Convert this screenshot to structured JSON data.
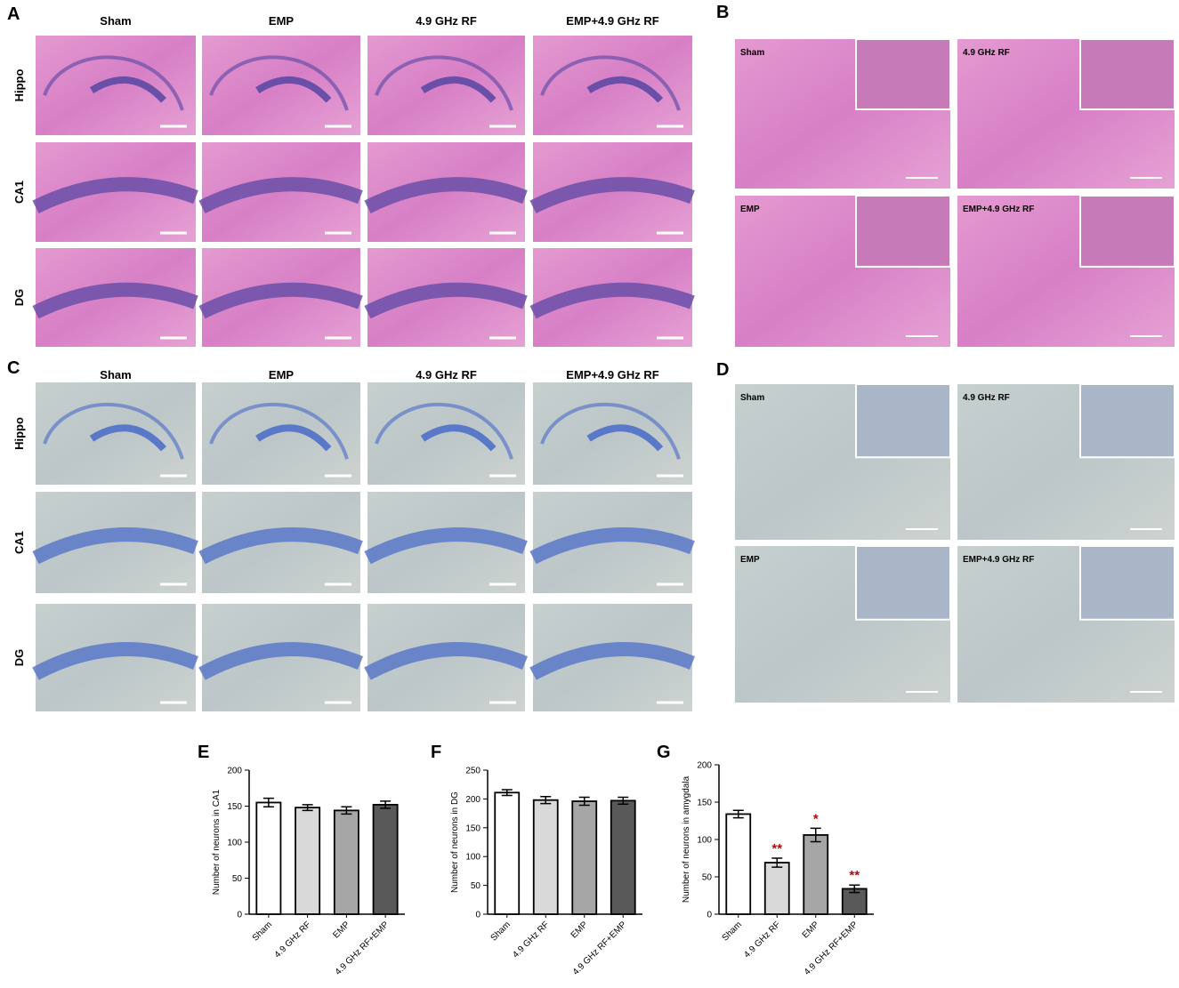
{
  "panels": {
    "A": {
      "label": "A",
      "columns": [
        "Sham",
        "EMP",
        "4.9 GHz RF",
        "EMP+4.9 GHz RF"
      ],
      "rows": [
        "Hippo",
        "CA1",
        "DG"
      ]
    },
    "B": {
      "label": "B",
      "tiles": [
        "Sham",
        "4.9 GHz RF",
        "EMP",
        "EMP+4.9 GHz RF"
      ]
    },
    "C": {
      "label": "C",
      "columns": [
        "Sham",
        "EMP",
        "4.9 GHz RF",
        "EMP+4.9 GHz RF"
      ],
      "rows": [
        "Hippo",
        "CA1",
        "DG"
      ]
    },
    "D": {
      "label": "D",
      "tiles": [
        "Sham",
        "4.9 GHz RF",
        "EMP",
        "EMP+4.9 GHz RF"
      ]
    }
  },
  "chart_data": [
    {
      "type": "bar",
      "panel_label": "E",
      "ylabel": "Number of neurons in CA1",
      "categories": [
        "Sham",
        "4.9 GHz RF",
        "EMP",
        "4.9 GHz RF+EMP"
      ],
      "values": [
        155,
        148,
        144,
        152
      ],
      "errors": [
        6,
        4,
        5,
        5
      ],
      "colors": [
        "#ffffff",
        "#d9d9d9",
        "#a6a6a6",
        "#595959"
      ],
      "ylim": [
        0,
        200
      ],
      "yticks": [
        0,
        50,
        100,
        150,
        200
      ]
    },
    {
      "type": "bar",
      "panel_label": "F",
      "ylabel": "Number of neurons in DG",
      "categories": [
        "Sham",
        "4.9 GHz RF",
        "EMP",
        "4.9 GHz RF+EMP"
      ],
      "values": [
        211,
        198,
        196,
        197
      ],
      "errors": [
        5,
        6,
        7,
        6
      ],
      "colors": [
        "#ffffff",
        "#d9d9d9",
        "#a6a6a6",
        "#595959"
      ],
      "ylim": [
        0,
        250
      ],
      "yticks": [
        0,
        50,
        100,
        150,
        200,
        250
      ]
    },
    {
      "type": "bar",
      "panel_label": "G",
      "ylabel": "Number of neurons in amygdala",
      "categories": [
        "Sham",
        "4.9 GHz RF",
        "EMP",
        "4.9 GHz RF+EMP"
      ],
      "values": [
        134,
        69,
        106,
        34
      ],
      "errors": [
        5,
        6,
        9,
        5
      ],
      "colors": [
        "#ffffff",
        "#d9d9d9",
        "#a6a6a6",
        "#595959"
      ],
      "annotations": [
        null,
        "**",
        "*",
        "**"
      ],
      "annotation_color": "#cc0000",
      "ylim": [
        0,
        200
      ],
      "yticks": [
        0,
        50,
        100,
        150,
        200
      ]
    }
  ]
}
